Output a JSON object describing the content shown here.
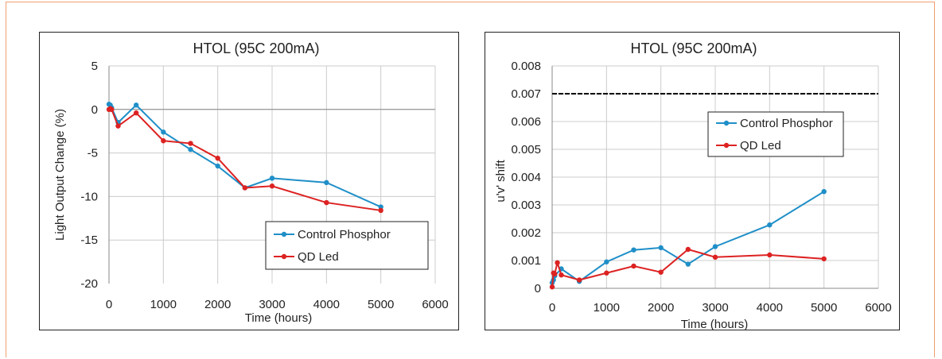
{
  "chart_data": [
    {
      "type": "line",
      "title": "HTOL (95C 200mA)",
      "xlabel": "Time (hours)",
      "ylabel": "Light Output Change (%)",
      "xlim": [
        0,
        6000
      ],
      "ylim": [
        -20,
        5
      ],
      "xticks": [
        0,
        1000,
        2000,
        3000,
        4000,
        5000,
        6000
      ],
      "yticks": [
        5,
        0,
        -5,
        -10,
        -15,
        -20
      ],
      "x_tick_labels": [
        "0",
        "1000",
        "2000",
        "3000",
        "4000",
        "5000",
        "6000"
      ],
      "y_tick_labels": [
        "5",
        "0",
        "-5",
        "-10",
        "-15",
        "-20"
      ],
      "grid": true,
      "legend_position": "bottom-right",
      "series": [
        {
          "name": "Control Phosphor",
          "color": "#1f8fc8",
          "x": [
            0,
            24,
            48,
            168,
            500,
            1000,
            1500,
            2000,
            2500,
            3000,
            4000,
            5000
          ],
          "y": [
            0.6,
            0.5,
            0.2,
            -1.5,
            0.5,
            -2.6,
            -4.6,
            -6.5,
            -9.0,
            -7.9,
            -8.4,
            -11.2
          ]
        },
        {
          "name": "QD Led",
          "color": "#dd2222",
          "x": [
            0,
            24,
            48,
            168,
            500,
            1000,
            1500,
            2000,
            2500,
            3000,
            4000,
            5000
          ],
          "y": [
            0.0,
            0.1,
            0.0,
            -1.9,
            -0.4,
            -3.6,
            -3.9,
            -5.6,
            -9.0,
            -8.8,
            -10.7,
            -11.6
          ]
        }
      ]
    },
    {
      "type": "line",
      "title": "HTOL (95C 200mA)",
      "xlabel": "Time (hours)",
      "ylabel": "u'v' shift",
      "xlim": [
        0,
        6000
      ],
      "ylim": [
        0,
        0.008
      ],
      "xticks": [
        0,
        1000,
        2000,
        3000,
        4000,
        5000,
        6000
      ],
      "yticks": [
        0.008,
        0.007,
        0.006,
        0.005,
        0.004,
        0.003,
        0.002,
        0.001,
        0
      ],
      "x_tick_labels": [
        "0",
        "1000",
        "2000",
        "3000",
        "4000",
        "5000",
        "6000"
      ],
      "y_tick_labels": [
        "0.008",
        "0.007",
        "0.006",
        "0.005",
        "0.004",
        "0.003",
        "0.002",
        "0.001",
        "0"
      ],
      "grid": true,
      "legend_position": "top-right",
      "reference_line": {
        "y": 0.007,
        "style": "dashed",
        "color": "#000000"
      },
      "series": [
        {
          "name": "Control Phosphor",
          "color": "#1f8fc8",
          "x": [
            0,
            24,
            48,
            168,
            500,
            1000,
            1500,
            2000,
            2500,
            3000,
            4000,
            5000
          ],
          "y": [
            0.0002,
            0.0003,
            0.00045,
            0.0007,
            0.00025,
            0.00095,
            0.00138,
            0.00146,
            0.00087,
            0.0015,
            0.00228,
            0.00348
          ]
        },
        {
          "name": "QD Led",
          "color": "#dd2222",
          "x": [
            0,
            24,
            48,
            96,
            168,
            500,
            1000,
            1500,
            2000,
            2500,
            3000,
            4000,
            5000
          ],
          "y": [
            5e-05,
            0.00055,
            0.00052,
            0.00092,
            0.00048,
            0.0003,
            0.00055,
            0.0008,
            0.00058,
            0.0014,
            0.00112,
            0.0012,
            0.00106
          ]
        }
      ]
    }
  ]
}
